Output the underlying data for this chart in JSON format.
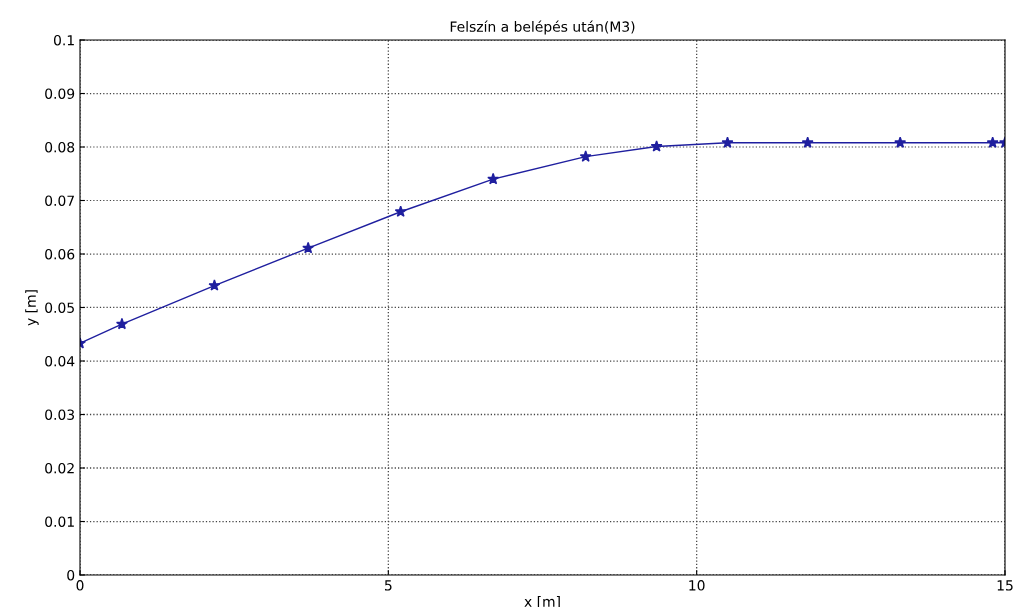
{
  "chart_data": {
    "type": "line",
    "title": "Felszín a belépés után(M3)",
    "xlabel": "x [m]",
    "ylabel": "y [m]",
    "x": [
      0,
      0.68,
      2.18,
      3.7,
      5.2,
      6.7,
      8.2,
      9.35,
      10.5,
      11.8,
      13.3,
      14.8,
      15
    ],
    "series": [
      {
        "color": "#1f1f9f",
        "values": [
          0.0433,
          0.0469,
          0.0541,
          0.0611,
          0.0679,
          0.074,
          0.0782,
          0.0801,
          0.0808,
          0.0808,
          0.0808,
          0.0808,
          0.0808
        ]
      }
    ],
    "xlim": [
      0,
      15
    ],
    "xticks": [
      0,
      5,
      10,
      15
    ],
    "ylim": [
      0,
      0.1
    ],
    "yticks": [
      0,
      0.01,
      0.02,
      0.03,
      0.04,
      0.05,
      0.06,
      0.07,
      0.08,
      0.09,
      0.1
    ],
    "grid": true,
    "marker": "star",
    "line_style": "solid"
  }
}
